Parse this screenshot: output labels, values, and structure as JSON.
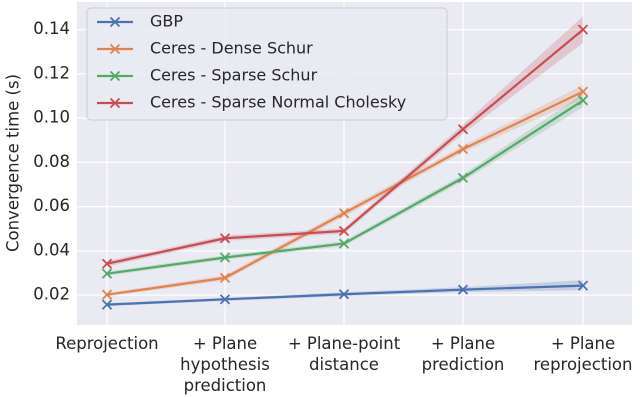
{
  "chart_data": {
    "type": "line",
    "y_label": "Convergence time (s)",
    "categories": [
      "Reprojection",
      "+ Plane\nhypothesis\nprediction",
      "+ Plane-point\ndistance",
      "+ Plane\nprediction",
      "+ Plane\nreprojection"
    ],
    "series": [
      {
        "name": "GBP",
        "color": "#4c72b0",
        "values": [
          0.0157,
          0.0181,
          0.0204,
          0.0225,
          0.0243
        ],
        "lower": [
          0.015,
          0.0174,
          0.0195,
          0.0214,
          0.0222
        ],
        "upper": [
          0.0164,
          0.0188,
          0.0213,
          0.0236,
          0.0268
        ]
      },
      {
        "name": "Ceres - Dense Schur",
        "color": "#dd8452",
        "values": [
          0.0202,
          0.0278,
          0.057,
          0.086,
          0.112
        ],
        "lower": [
          0.0194,
          0.0266,
          0.0555,
          0.0845,
          0.109
        ],
        "upper": [
          0.021,
          0.029,
          0.0585,
          0.0875,
          0.115
        ]
      },
      {
        "name": "Ceres - Sparse Schur",
        "color": "#55a868",
        "values": [
          0.0297,
          0.037,
          0.0433,
          0.073,
          0.108
        ],
        "lower": [
          0.0288,
          0.036,
          0.0422,
          0.0715,
          0.105
        ],
        "upper": [
          0.0306,
          0.038,
          0.0444,
          0.0745,
          0.111
        ]
      },
      {
        "name": "Ceres - Sparse Normal Cholesky",
        "color": "#c44e52",
        "values": [
          0.0342,
          0.0457,
          0.049,
          0.095,
          0.14
        ],
        "lower": [
          0.033,
          0.0445,
          0.0478,
          0.093,
          0.134
        ],
        "upper": [
          0.0354,
          0.0469,
          0.0502,
          0.097,
          0.146
        ]
      }
    ],
    "ylim": [
      0.0065,
      0.1525
    ],
    "yticks": [
      0.02,
      0.04,
      0.06,
      0.08,
      {
        "value": 0.1,
        "label": "0.10"
      },
      0.12,
      0.14
    ],
    "grid": true,
    "legend": "upper-left"
  }
}
